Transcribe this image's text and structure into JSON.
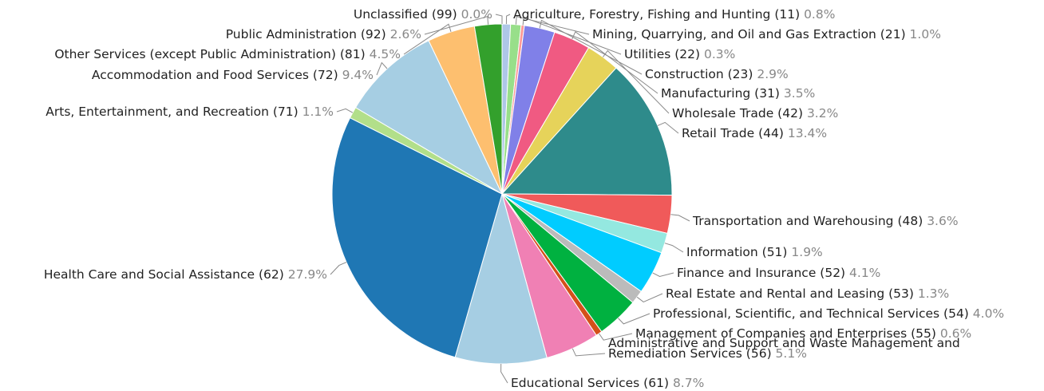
{
  "chart_data": {
    "type": "pie",
    "title": "",
    "slices": [
      {
        "name": "Agriculture, Forestry, Fishing and Hunting (11)",
        "percent": "0.8%",
        "value": 0.8,
        "color": "#aec7e8"
      },
      {
        "name": "Mining, Quarrying, and Oil and Gas Extraction (21)",
        "percent": "1.0%",
        "value": 1.0,
        "color": "#98df8a"
      },
      {
        "name": "Utilities (22)",
        "percent": "0.3%",
        "value": 0.3,
        "color": "#ff9896"
      },
      {
        "name": "Construction (23)",
        "percent": "2.9%",
        "value": 2.9,
        "color": "#8080e8"
      },
      {
        "name": "Manufacturing (31)",
        "percent": "3.5%",
        "value": 3.5,
        "color": "#f05a82"
      },
      {
        "name": "Wholesale Trade (42)",
        "percent": "3.2%",
        "value": 3.2,
        "color": "#e6d35a"
      },
      {
        "name": "Retail Trade (44)",
        "percent": "13.4%",
        "value": 13.4,
        "color": "#2e8b8b"
      },
      {
        "name": "Transportation and Warehousing (48)",
        "percent": "3.6%",
        "value": 3.6,
        "color": "#f05a5a"
      },
      {
        "name": "Information (51)",
        "percent": "1.9%",
        "value": 1.9,
        "color": "#94e8e0"
      },
      {
        "name": "Finance and Insurance (52)",
        "percent": "4.1%",
        "value": 4.1,
        "color": "#00ccff"
      },
      {
        "name": "Real Estate and Rental and Leasing (53)",
        "percent": "1.3%",
        "value": 1.3,
        "color": "#bbbbbb"
      },
      {
        "name": "Professional, Scientific, and Technical Services (54)",
        "percent": "4.0%",
        "value": 4.0,
        "color": "#00b140"
      },
      {
        "name": "Management of Companies and Enterprises (55)",
        "percent": "0.6%",
        "value": 0.6,
        "color": "#d4501a"
      },
      {
        "name": "Administrative and Support and Waste Management and Remediation Services (56)",
        "label_lines": [
          "Administrative and Support and Waste Management and",
          "Remediation Services (56)"
        ],
        "percent": "5.1%",
        "value": 5.1,
        "color": "#f080b4"
      },
      {
        "name": "Educational Services (61)",
        "percent": "8.7%",
        "value": 8.7,
        "color": "#a6cee3"
      },
      {
        "name": "Health Care and Social Assistance (62)",
        "percent": "27.9%",
        "value": 27.9,
        "color": "#1f77b4"
      },
      {
        "name": "Arts, Entertainment, and Recreation (71)",
        "percent": "1.1%",
        "value": 1.1,
        "color": "#b2df8a"
      },
      {
        "name": "Accommodation and Food Services (72)",
        "percent": "9.4%",
        "value": 9.4,
        "color": "#a6cee3"
      },
      {
        "name": "Other Services (except Public Administration) (81)",
        "percent": "4.5%",
        "value": 4.5,
        "color": "#fdbf6f"
      },
      {
        "name": "Public Administration (92)",
        "percent": "2.6%",
        "value": 2.6,
        "color": "#33a02c"
      },
      {
        "name": "Unclassified (99)",
        "percent": "0.0%",
        "value": 0.0,
        "color": "#cccccc"
      }
    ],
    "legend": "none",
    "labels": "outside with leader lines"
  }
}
